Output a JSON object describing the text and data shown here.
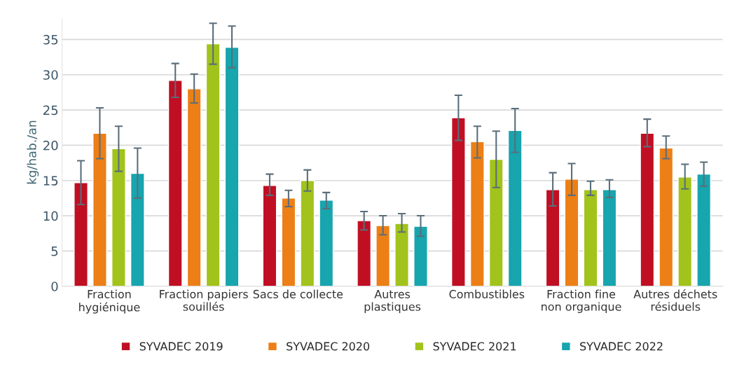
{
  "chart_data": {
    "type": "bar",
    "ylabel": "kg/hab./an",
    "categories": [
      "Fraction\nhygiénique",
      "Fraction papiers\nsouillés",
      "Sacs de collecte",
      "Autres\nplastiques",
      "Combustibles",
      "Fraction fine\nnon organique",
      "Autres déchets\nrésiduels"
    ],
    "series": [
      {
        "name": "SYVADEC 2019",
        "color": "#c00f23",
        "values": [
          14.7,
          29.2,
          14.3,
          9.3,
          23.9,
          13.7,
          21.7
        ],
        "errors": [
          [
            11.6,
            17.8
          ],
          [
            26.8,
            31.6
          ],
          [
            12.9,
            15.9
          ],
          [
            8.0,
            10.6
          ],
          [
            20.7,
            27.1
          ],
          [
            11.4,
            16.1
          ],
          [
            19.8,
            23.7
          ]
        ]
      },
      {
        "name": "SYVADEC 2020",
        "color": "#ec7f16",
        "values": [
          21.7,
          28.0,
          12.5,
          8.6,
          20.5,
          15.2,
          19.6
        ],
        "errors": [
          [
            18.1,
            25.3
          ],
          [
            26.0,
            30.1
          ],
          [
            11.3,
            13.6
          ],
          [
            7.3,
            10.0
          ],
          [
            18.2,
            22.7
          ],
          [
            12.9,
            17.4
          ],
          [
            18.1,
            21.3
          ]
        ]
      },
      {
        "name": "SYVADEC 2021",
        "color": "#a2c31c",
        "values": [
          19.5,
          34.4,
          15.0,
          8.9,
          18.0,
          13.7,
          15.5
        ],
        "errors": [
          [
            16.3,
            22.7
          ],
          [
            31.5,
            37.3
          ],
          [
            13.5,
            16.5
          ],
          [
            7.7,
            10.3
          ],
          [
            14.0,
            22.0
          ],
          [
            12.9,
            14.9
          ],
          [
            13.8,
            17.3
          ]
        ]
      },
      {
        "name": "SYVADEC 2022",
        "color": "#17a5ae",
        "values": [
          16.0,
          33.9,
          12.2,
          8.5,
          22.1,
          13.7,
          15.9
        ],
        "errors": [
          [
            12.5,
            19.6
          ],
          [
            31.0,
            36.9
          ],
          [
            11.0,
            13.3
          ],
          [
            7.1,
            10.0
          ],
          [
            19.0,
            25.2
          ],
          [
            12.6,
            15.1
          ],
          [
            14.2,
            17.6
          ]
        ]
      }
    ],
    "ylim": [
      0,
      38
    ],
    "yticks": [
      0,
      5,
      10,
      15,
      20,
      25,
      30,
      35
    ],
    "grid": "y",
    "legend": "bottom"
  }
}
